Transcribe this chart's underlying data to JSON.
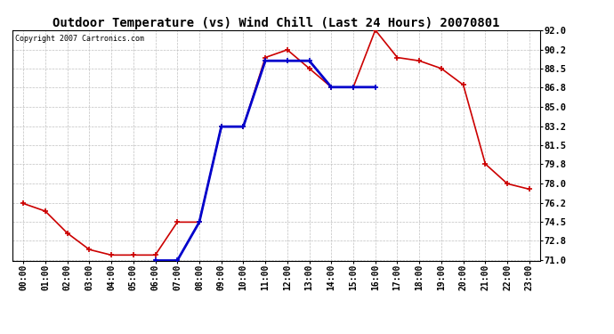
{
  "title": "Outdoor Temperature (vs) Wind Chill (Last 24 Hours) 20070801",
  "copyright_text": "Copyright 2007 Cartronics.com",
  "hours": [
    "00:00",
    "01:00",
    "02:00",
    "03:00",
    "04:00",
    "05:00",
    "06:00",
    "07:00",
    "08:00",
    "09:00",
    "10:00",
    "11:00",
    "12:00",
    "13:00",
    "14:00",
    "15:00",
    "16:00",
    "17:00",
    "18:00",
    "19:00",
    "20:00",
    "21:00",
    "22:00",
    "23:00"
  ],
  "temp": [
    76.2,
    75.5,
    73.5,
    72.0,
    71.5,
    71.5,
    71.5,
    74.5,
    74.5,
    83.2,
    83.2,
    89.5,
    90.2,
    88.5,
    86.8,
    86.8,
    92.0,
    89.5,
    89.2,
    88.5,
    87.0,
    79.8,
    78.0,
    77.5
  ],
  "windchill": [
    null,
    null,
    null,
    null,
    null,
    null,
    71.0,
    71.0,
    74.5,
    83.2,
    83.2,
    89.2,
    89.2,
    89.2,
    86.8,
    86.8,
    86.8,
    null,
    null,
    null,
    null,
    null,
    null,
    null
  ],
  "temp_color": "#cc0000",
  "windchill_color": "#0000cc",
  "bg_color": "#ffffff",
  "plot_bg_color": "#ffffff",
  "grid_color": "#c0c0c0",
  "ylim_min": 71.0,
  "ylim_max": 92.0,
  "yticks": [
    71.0,
    72.8,
    74.5,
    76.2,
    78.0,
    79.8,
    81.5,
    83.2,
    85.0,
    86.8,
    88.5,
    90.2,
    92.0
  ],
  "marker": "+",
  "linewidth": 1.2,
  "markersize": 5,
  "title_fontsize": 10,
  "tick_fontsize": 7
}
